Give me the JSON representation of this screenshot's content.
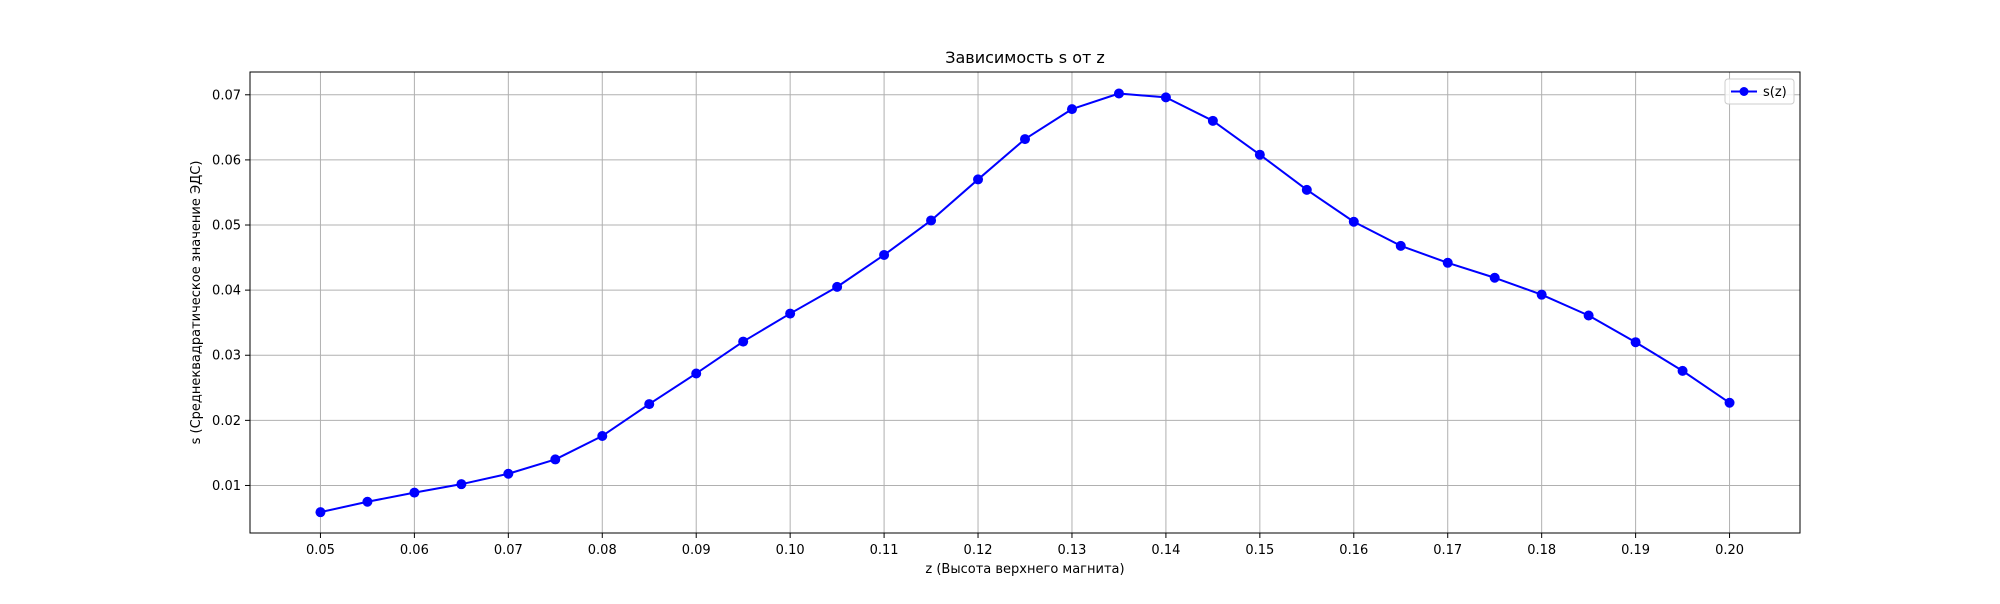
{
  "chart_data": {
    "type": "line",
    "title": "Зависимость s от z",
    "xlabel": "z (Высота верхнего магнита)",
    "ylabel": "s (Среднеквадратическое значение ЭДС)",
    "xlim": [
      0.0425,
      0.2075
    ],
    "ylim": [
      0.0027,
      0.0735
    ],
    "xticks": [
      0.05,
      0.06,
      0.07,
      0.08,
      0.09,
      0.1,
      0.11,
      0.12,
      0.13,
      0.14,
      0.15,
      0.16,
      0.17,
      0.18,
      0.19,
      0.2
    ],
    "xtick_labels": [
      "0.05",
      "0.06",
      "0.07",
      "0.08",
      "0.09",
      "0.10",
      "0.11",
      "0.12",
      "0.13",
      "0.14",
      "0.15",
      "0.16",
      "0.17",
      "0.18",
      "0.19",
      "0.20"
    ],
    "yticks": [
      0.01,
      0.02,
      0.03,
      0.04,
      0.05,
      0.06,
      0.07
    ],
    "ytick_labels": [
      "0.01",
      "0.02",
      "0.03",
      "0.04",
      "0.05",
      "0.06",
      "0.07"
    ],
    "grid": true,
    "legend_position": "upper right",
    "series": [
      {
        "name": "s(z)",
        "color": "#0000ff",
        "marker": "circle",
        "x": [
          0.05,
          0.055,
          0.06,
          0.065,
          0.07,
          0.075,
          0.08,
          0.085,
          0.09,
          0.095,
          0.1,
          0.105,
          0.11,
          0.115,
          0.12,
          0.125,
          0.13,
          0.135,
          0.14,
          0.145,
          0.15,
          0.155,
          0.16,
          0.165,
          0.17,
          0.175,
          0.18,
          0.185,
          0.19,
          0.195,
          0.2
        ],
        "y": [
          0.0059,
          0.0075,
          0.0089,
          0.0102,
          0.0118,
          0.014,
          0.0176,
          0.0225,
          0.0272,
          0.0321,
          0.0364,
          0.0405,
          0.0454,
          0.0507,
          0.057,
          0.0632,
          0.0678,
          0.0702,
          0.0696,
          0.066,
          0.0608,
          0.0554,
          0.0505,
          0.0468,
          0.0442,
          0.0419,
          0.0393,
          0.0361,
          0.032,
          0.0276,
          0.0227
        ]
      }
    ]
  }
}
